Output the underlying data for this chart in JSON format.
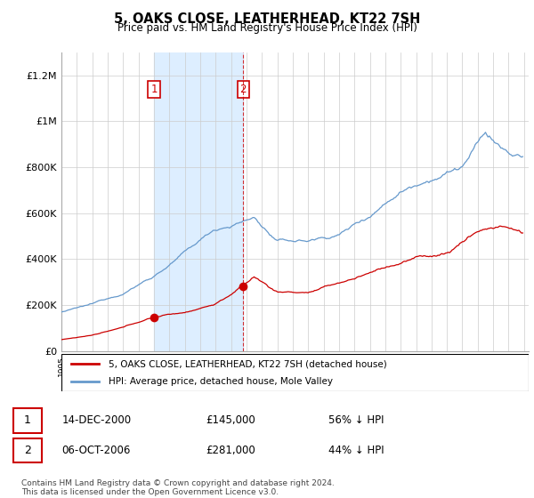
{
  "title": "5, OAKS CLOSE, LEATHERHEAD, KT22 7SH",
  "subtitle": "Price paid vs. HM Land Registry's House Price Index (HPI)",
  "legend_line1": "5, OAKS CLOSE, LEATHERHEAD, KT22 7SH (detached house)",
  "legend_line2": "HPI: Average price, detached house, Mole Valley",
  "transaction1_text_col1": "14-DEC-2000",
  "transaction1_text_col2": "£145,000",
  "transaction1_text_col3": "56% ↓ HPI",
  "transaction2_text_col1": "06-OCT-2006",
  "transaction2_text_col2": "£281,000",
  "transaction2_text_col3": "44% ↓ HPI",
  "footnote": "Contains HM Land Registry data © Crown copyright and database right 2024.\nThis data is licensed under the Open Government Licence v3.0.",
  "red_color": "#cc0000",
  "blue_color": "#6699cc",
  "shade_color": "#ddeeff",
  "ylim": [
    0,
    1300000
  ],
  "yticks": [
    0,
    200000,
    400000,
    600000,
    800000,
    1000000,
    1200000
  ],
  "ytick_labels": [
    "£0",
    "£200K",
    "£400K",
    "£600K",
    "£800K",
    "£1M",
    "£1.2M"
  ],
  "transaction1_year": 2001.0,
  "transaction2_year": 2006.79
}
